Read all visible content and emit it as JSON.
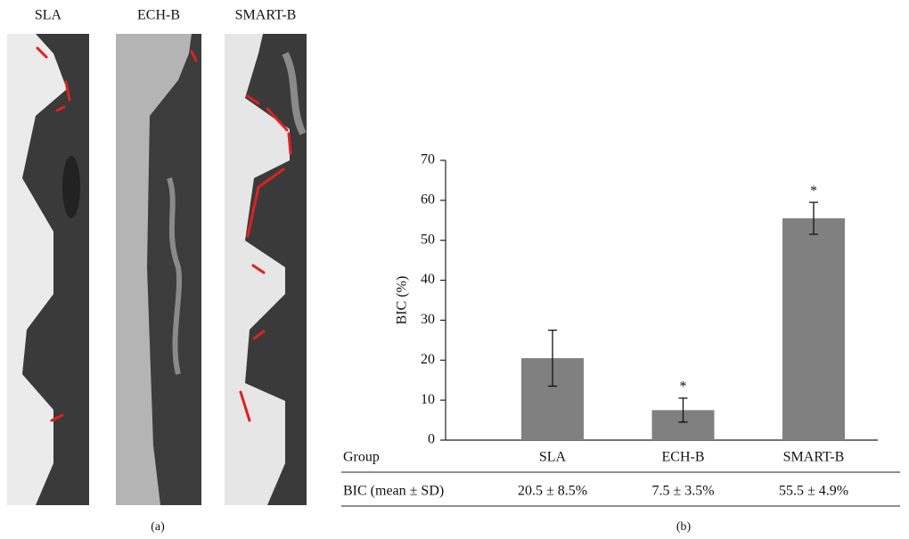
{
  "images": {
    "labels": [
      "SLA",
      "ECH-B",
      "SMART-B"
    ],
    "caption": "(a)"
  },
  "chart_data": {
    "type": "bar",
    "ylabel": "BIC (%)",
    "categories": [
      "SLA",
      "ECH-B",
      "SMART-B"
    ],
    "values": [
      20.5,
      7.5,
      55.5
    ],
    "errors": [
      7,
      3,
      4
    ],
    "annotations": [
      null,
      "*",
      "*"
    ],
    "color": "#808080",
    "ylim": [
      0,
      70
    ],
    "yticks": [
      0,
      10,
      20,
      30,
      40,
      50,
      60,
      70
    ]
  },
  "table": {
    "header": "Group",
    "row_label": "BIC (mean ± SD)",
    "row": [
      "20.5 ± 8.5%",
      "7.5 ± 3.5%",
      "55.5 ± 4.9%"
    ]
  },
  "caption": "(b)"
}
